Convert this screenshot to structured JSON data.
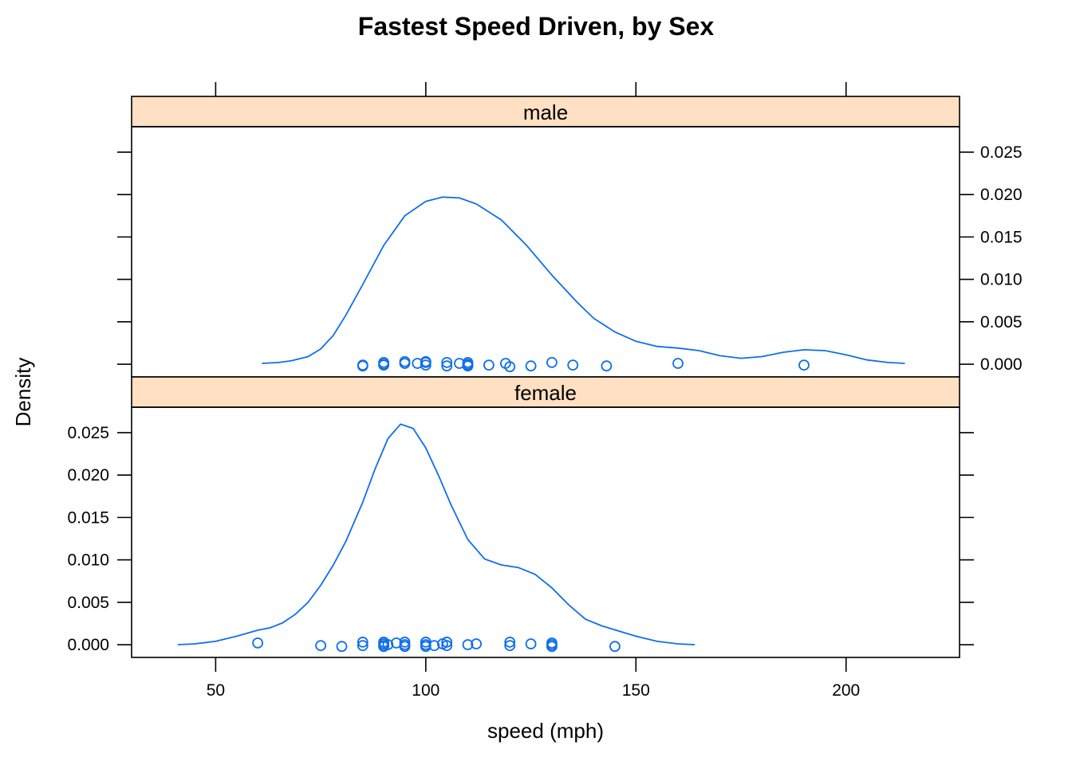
{
  "chart_data": {
    "type": "density",
    "title": "Fastest Speed Driven, by Sex",
    "xlabel": "speed (mph)",
    "ylabel": "Density",
    "xlim": [
      30,
      227
    ],
    "ylim": [
      -0.0015,
      0.028
    ],
    "x_ticks": [
      50,
      100,
      150,
      200
    ],
    "x_tick_labels": [
      "50",
      "100",
      "150",
      "200"
    ],
    "y_ticks": [
      0,
      0.005,
      0.01,
      0.015,
      0.02,
      0.025
    ],
    "y_tick_labels": [
      "0.000",
      "0.005",
      "0.010",
      "0.015",
      "0.020",
      "0.025"
    ],
    "colors": {
      "series": "#0f6fea",
      "strip": "#ffe0c2"
    },
    "panels": [
      {
        "name": "male",
        "density_curve": [
          [
            61,
            0.0001
          ],
          [
            65,
            0.0002
          ],
          [
            68,
            0.0004
          ],
          [
            72,
            0.0009
          ],
          [
            75,
            0.0018
          ],
          [
            78,
            0.0034
          ],
          [
            81,
            0.0058
          ],
          [
            85,
            0.0094
          ],
          [
            90,
            0.014
          ],
          [
            95,
            0.0175
          ],
          [
            100,
            0.0192
          ],
          [
            104,
            0.0197
          ],
          [
            108,
            0.0196
          ],
          [
            112,
            0.0189
          ],
          [
            118,
            0.017
          ],
          [
            124,
            0.014
          ],
          [
            130,
            0.0105
          ],
          [
            136,
            0.0073
          ],
          [
            140,
            0.0054
          ],
          [
            145,
            0.0038
          ],
          [
            150,
            0.0027
          ],
          [
            155,
            0.0021
          ],
          [
            160,
            0.0019
          ],
          [
            165,
            0.0016
          ],
          [
            170,
            0.001
          ],
          [
            175,
            0.0007
          ],
          [
            180,
            0.0009
          ],
          [
            185,
            0.0014
          ],
          [
            190,
            0.0017
          ],
          [
            195,
            0.0016
          ],
          [
            200,
            0.0011
          ],
          [
            205,
            0.0005
          ],
          [
            210,
            0.0002
          ],
          [
            214,
            0.0001
          ]
        ],
        "observations": [
          [
            85,
            -0.0001
          ],
          [
            85,
            -0.0002
          ],
          [
            90,
            0.0002
          ],
          [
            90,
            0.0
          ],
          [
            90,
            -0.0001
          ],
          [
            95,
            0.0003
          ],
          [
            95,
            0.0001
          ],
          [
            98,
            0.0001
          ],
          [
            100,
            0.0002
          ],
          [
            100,
            0.0003
          ],
          [
            100,
            -0.0001
          ],
          [
            105,
            0.0002
          ],
          [
            105,
            -0.0002
          ],
          [
            108,
            0.0001
          ],
          [
            110,
            0.0002
          ],
          [
            110,
            -0.0001
          ],
          [
            110,
            -0.0002
          ],
          [
            110,
            0.0
          ],
          [
            115,
            -0.0001
          ],
          [
            119,
            0.0001
          ],
          [
            120,
            -0.0003
          ],
          [
            125,
            -0.0002
          ],
          [
            130,
            0.0002
          ],
          [
            135,
            -0.0001
          ],
          [
            143,
            -0.0002
          ],
          [
            160,
            0.0001
          ],
          [
            190,
            -0.0001
          ]
        ]
      },
      {
        "name": "female",
        "density_curve": [
          [
            41,
            0.0
          ],
          [
            45,
            0.0001
          ],
          [
            50,
            0.0004
          ],
          [
            55,
            0.001
          ],
          [
            60,
            0.0017
          ],
          [
            63,
            0.002
          ],
          [
            66,
            0.0026
          ],
          [
            69,
            0.0036
          ],
          [
            72,
            0.005
          ],
          [
            75,
            0.007
          ],
          [
            78,
            0.0094
          ],
          [
            81,
            0.0122
          ],
          [
            85,
            0.0168
          ],
          [
            88,
            0.0208
          ],
          [
            91,
            0.0243
          ],
          [
            94,
            0.026
          ],
          [
            97,
            0.0255
          ],
          [
            100,
            0.0232
          ],
          [
            103,
            0.02
          ],
          [
            106,
            0.0165
          ],
          [
            110,
            0.0124
          ],
          [
            114,
            0.0101
          ],
          [
            118,
            0.0094
          ],
          [
            122,
            0.0091
          ],
          [
            126,
            0.0083
          ],
          [
            130,
            0.0067
          ],
          [
            134,
            0.0047
          ],
          [
            138,
            0.003
          ],
          [
            142,
            0.0022
          ],
          [
            146,
            0.0016
          ],
          [
            150,
            0.001
          ],
          [
            155,
            0.0004
          ],
          [
            160,
            0.0001
          ],
          [
            164,
            0.0
          ]
        ],
        "observations": [
          [
            60,
            0.0002
          ],
          [
            75,
            -0.0001
          ],
          [
            80,
            -0.0002
          ],
          [
            85,
            0.0003
          ],
          [
            85,
            -0.0001
          ],
          [
            90,
            0.0003
          ],
          [
            90,
            0.0001
          ],
          [
            90,
            -0.0001
          ],
          [
            90,
            -0.0002
          ],
          [
            91,
            0.0
          ],
          [
            93,
            0.0002
          ],
          [
            95,
            0.0003
          ],
          [
            95,
            0.0
          ],
          [
            95,
            -0.0002
          ],
          [
            100,
            0.0003
          ],
          [
            100,
            0.0
          ],
          [
            100,
            -0.0002
          ],
          [
            102,
            -0.0001
          ],
          [
            104,
            0.0001
          ],
          [
            105,
            0.0003
          ],
          [
            105,
            -0.0001
          ],
          [
            110,
            0.0
          ],
          [
            112,
            0.0001
          ],
          [
            120,
            0.0003
          ],
          [
            120,
            -0.0001
          ],
          [
            125,
            0.0001
          ],
          [
            130,
            0.0002
          ],
          [
            130,
            0.0
          ],
          [
            130,
            -0.0002
          ],
          [
            145,
            -0.0002
          ]
        ]
      }
    ]
  }
}
